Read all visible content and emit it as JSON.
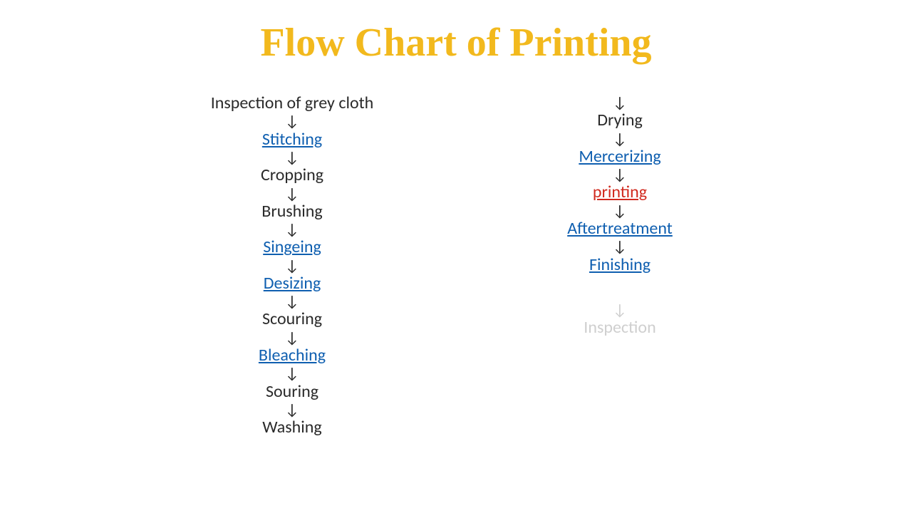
{
  "title": {
    "text": "Flow Chart of Printing",
    "color": "#f2b91d",
    "fontsize": 56
  },
  "flowchart": {
    "type": "flowchart",
    "arrow_glyph": "↓",
    "arrow_color": "#2a2a2a",
    "arrow_fontsize": 22,
    "step_fontsize": 24,
    "columns": [
      {
        "items": [
          {
            "kind": "step",
            "text": "Inspection of grey cloth",
            "color": "#2a2a2a",
            "link": false
          },
          {
            "kind": "arrow"
          },
          {
            "kind": "step",
            "text": "Stitching",
            "color": "#0f5fb0",
            "link": true
          },
          {
            "kind": "arrow"
          },
          {
            "kind": "step",
            "text": "Cropping",
            "color": "#2a2a2a",
            "link": false
          },
          {
            "kind": "arrow"
          },
          {
            "kind": "step",
            "text": "Brushing",
            "color": "#2a2a2a",
            "link": false
          },
          {
            "kind": "arrow"
          },
          {
            "kind": "step",
            "text": "Singeing",
            "color": "#0f5fb0",
            "link": true
          },
          {
            "kind": "arrow"
          },
          {
            "kind": "step",
            "text": "Desizing",
            "color": "#0f5fb0",
            "link": true
          },
          {
            "kind": "arrow"
          },
          {
            "kind": "step",
            "text": "Scouring",
            "color": "#2a2a2a",
            "link": false
          },
          {
            "kind": "arrow"
          },
          {
            "kind": "step",
            "text": "Bleaching",
            "color": "#0f5fb0",
            "link": true
          },
          {
            "kind": "arrow"
          },
          {
            "kind": "step",
            "text": "Souring",
            "color": "#2a2a2a",
            "link": false
          },
          {
            "kind": "arrow"
          },
          {
            "kind": "step",
            "text": "Washing",
            "color": "#2a2a2a",
            "link": false
          }
        ]
      },
      {
        "items": [
          {
            "kind": "arrow"
          },
          {
            "kind": "step",
            "text": "Drying",
            "color": "#2a2a2a",
            "link": false
          },
          {
            "kind": "arrow"
          },
          {
            "kind": "step",
            "text": "Mercerizing",
            "color": "#0f5fb0",
            "link": true
          },
          {
            "kind": "arrow"
          },
          {
            "kind": "step",
            "text": "printing",
            "color": "#d12a1f",
            "link": true
          },
          {
            "kind": "arrow"
          },
          {
            "kind": "step",
            "text": "Aftertreatment",
            "color": "#0f5fb0",
            "link": true
          },
          {
            "kind": "arrow"
          },
          {
            "kind": "step",
            "text": "Finishing",
            "color": "#0f5fb0",
            "link": true
          },
          {
            "kind": "spacer",
            "height": 38
          },
          {
            "kind": "arrow",
            "color": "#cfcfcf"
          },
          {
            "kind": "step",
            "text": "Inspection",
            "color": "#cfcfcf",
            "link": false
          }
        ]
      }
    ]
  }
}
